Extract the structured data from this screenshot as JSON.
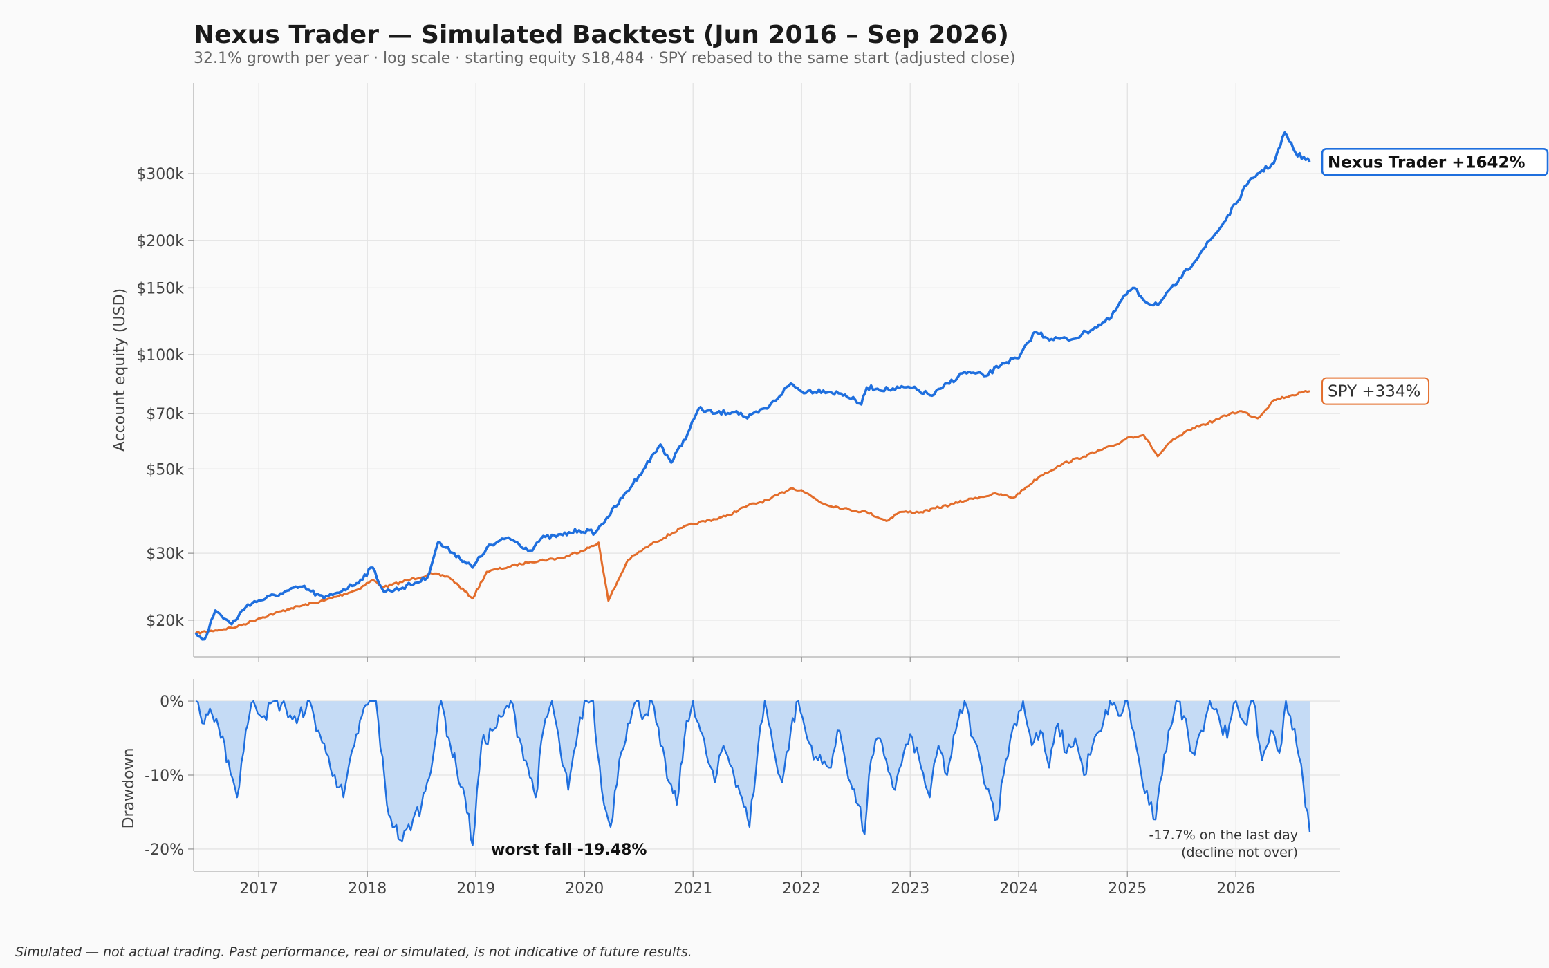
{
  "chart_data": [
    {
      "type": "line",
      "title": "Nexus Trader — Simulated Backtest (Jun 2016 – Sep 2026)",
      "subtitle": "32.1% growth per year · log scale · starting equity $18,484 · SPY rebased to the same start (adjusted close)",
      "ylabel": "Account equity (USD)",
      "yscale": "log",
      "ylim": [
        16000,
        520000
      ],
      "yticks": [
        20000,
        30000,
        50000,
        70000,
        100000,
        150000,
        200000,
        300000
      ],
      "ytick_labels": [
        "$20k",
        "$30k",
        "$50k",
        "$70k",
        "$100k",
        "$150k",
        "$200k",
        "$300k"
      ],
      "xlim": [
        2016.4,
        2026.96
      ],
      "x_ticks": [
        2017,
        2018,
        2019,
        2020,
        2021,
        2022,
        2023,
        2024,
        2025,
        2026
      ],
      "x_tick_labels": [
        "2017",
        "2018",
        "2019",
        "2020",
        "2021",
        "2022",
        "2023",
        "2024",
        "2025",
        "2026"
      ],
      "grid": true,
      "series": [
        {
          "name": "Nexus Trader",
          "color": "#1f6fde",
          "end_label": "Nexus Trader  +1642%",
          "x": [
            2016.42,
            2016.5,
            2016.6,
            2016.75,
            2016.9,
            2017.0,
            2017.2,
            2017.4,
            2017.6,
            2017.7,
            2017.9,
            2018.05,
            2018.15,
            2018.25,
            2018.4,
            2018.55,
            2018.65,
            2018.8,
            2018.97,
            2019.1,
            2019.3,
            2019.5,
            2019.6,
            2019.8,
            2019.95,
            2020.1,
            2020.2,
            2020.35,
            2020.5,
            2020.7,
            2020.8,
            2020.95,
            2021.05,
            2021.2,
            2021.4,
            2021.5,
            2021.7,
            2021.9,
            2022.0,
            2022.2,
            2022.4,
            2022.55,
            2022.6,
            2022.8,
            2023.0,
            2023.2,
            2023.3,
            2023.5,
            2023.7,
            2023.85,
            2024.0,
            2024.15,
            2024.3,
            2024.5,
            2024.7,
            2024.85,
            2024.95,
            2025.05,
            2025.2,
            2025.3,
            2025.5,
            2025.7,
            2025.85,
            2026.0,
            2026.1,
            2026.2,
            2026.35,
            2026.45,
            2026.55,
            2026.68
          ],
          "values": [
            18484,
            17800,
            21200,
            19500,
            22000,
            22500,
            23500,
            24500,
            22800,
            23500,
            25000,
            27500,
            23800,
            24000,
            24800,
            25800,
            32000,
            30000,
            27500,
            31000,
            33000,
            30500,
            32800,
            33500,
            34500,
            34000,
            37000,
            42000,
            48000,
            58000,
            52000,
            62000,
            72000,
            70000,
            71000,
            68000,
            73000,
            84000,
            80000,
            80500,
            78500,
            74000,
            82000,
            81000,
            82000,
            78000,
            82000,
            90000,
            88000,
            95000,
            98000,
            115000,
            110000,
            110000,
            118000,
            125000,
            140000,
            150000,
            136000,
            137000,
            160000,
            190000,
            215000,
            250000,
            280000,
            300000,
            320000,
            385000,
            340000,
            322000
          ]
        },
        {
          "name": "SPY",
          "color": "#e36d2b",
          "end_label": "SPY  +334%",
          "x": [
            2016.42,
            2016.6,
            2016.8,
            2017.0,
            2017.3,
            2017.6,
            2017.9,
            2018.05,
            2018.15,
            2018.4,
            2018.6,
            2018.75,
            2018.97,
            2019.1,
            2019.3,
            2019.5,
            2019.8,
            2020.1,
            2020.13,
            2020.22,
            2020.4,
            2020.6,
            2020.9,
            2021.0,
            2021.3,
            2021.5,
            2021.7,
            2021.9,
            2022.0,
            2022.2,
            2022.45,
            2022.6,
            2022.78,
            2022.9,
            2023.1,
            2023.4,
            2023.6,
            2023.8,
            2023.95,
            2024.2,
            2024.4,
            2024.6,
            2024.9,
            2025.0,
            2025.15,
            2025.28,
            2025.4,
            2025.6,
            2025.8,
            2025.95,
            2026.05,
            2026.2,
            2026.35,
            2026.5,
            2026.68
          ],
          "values": [
            18484,
            18800,
            19200,
            20200,
            21500,
            22500,
            24000,
            25500,
            24400,
            25600,
            26500,
            26000,
            22800,
            26800,
            27600,
            28500,
            29200,
            31500,
            32000,
            22500,
            28800,
            31500,
            35000,
            35800,
            37500,
            40000,
            41500,
            44500,
            44000,
            40500,
            39000,
            38500,
            36500,
            38500,
            38500,
            40500,
            42000,
            43000,
            42000,
            48000,
            51500,
            54000,
            58000,
            60500,
            61500,
            54000,
            59000,
            64000,
            67000,
            70000,
            71000,
            68000,
            76000,
            78000,
            80200
          ]
        }
      ]
    },
    {
      "type": "area",
      "ylabel": "Drawdown",
      "ylim": [
        -23,
        3
      ],
      "yticks": [
        0,
        -10,
        -20
      ],
      "ytick_labels": [
        "0%",
        "-10%",
        "-20%"
      ],
      "xlim": [
        2016.4,
        2026.96
      ],
      "x_ticks": [
        2017,
        2018,
        2019,
        2020,
        2021,
        2022,
        2023,
        2024,
        2025,
        2026
      ],
      "x_tick_labels": [
        "2017",
        "2018",
        "2019",
        "2020",
        "2021",
        "2022",
        "2023",
        "2024",
        "2025",
        "2026"
      ],
      "series": [
        {
          "name": "Drawdown",
          "color": "#1f6fde",
          "fill_color": "#c5dbf5",
          "x": [
            2016.42,
            2016.48,
            2016.55,
            2016.65,
            2016.72,
            2016.8,
            2016.88,
            2016.95,
            2017.05,
            2017.15,
            2017.25,
            2017.35,
            2017.45,
            2017.55,
            2017.62,
            2017.7,
            2017.78,
            2017.88,
            2017.95,
            2018.02,
            2018.08,
            2018.18,
            2018.25,
            2018.32,
            2018.42,
            2018.5,
            2018.55,
            2018.62,
            2018.68,
            2018.75,
            2018.82,
            2018.9,
            2018.97,
            2019.05,
            2019.15,
            2019.25,
            2019.32,
            2019.4,
            2019.48,
            2019.55,
            2019.62,
            2019.7,
            2019.78,
            2019.85,
            2019.92,
            2020.0,
            2020.08,
            2020.12,
            2020.18,
            2020.24,
            2020.32,
            2020.4,
            2020.48,
            2020.55,
            2020.62,
            2020.7,
            2020.78,
            2020.85,
            2020.92,
            2021.0,
            2021.05,
            2021.12,
            2021.2,
            2021.28,
            2021.36,
            2021.45,
            2021.52,
            2021.6,
            2021.66,
            2021.75,
            2021.82,
            2021.9,
            2021.97,
            2022.05,
            2022.15,
            2022.25,
            2022.35,
            2022.45,
            2022.52,
            2022.58,
            2022.62,
            2022.7,
            2022.78,
            2022.86,
            2022.94,
            2023.02,
            2023.1,
            2023.18,
            2023.26,
            2023.34,
            2023.42,
            2023.5,
            2023.58,
            2023.66,
            2023.74,
            2023.8,
            2023.88,
            2023.96,
            2024.04,
            2024.12,
            2024.2,
            2024.28,
            2024.36,
            2024.44,
            2024.52,
            2024.6,
            2024.68,
            2024.76,
            2024.84,
            2024.92,
            2025.0,
            2025.08,
            2025.14,
            2025.2,
            2025.26,
            2025.32,
            2025.38,
            2025.45,
            2025.52,
            2025.6,
            2025.68,
            2025.76,
            2025.84,
            2025.92,
            2026.0,
            2026.08,
            2026.16,
            2026.24,
            2026.32,
            2026.4,
            2026.46,
            2026.5,
            2026.56,
            2026.62,
            2026.68
          ],
          "values": [
            0,
            -3,
            -1,
            -5,
            -8,
            -13,
            -4,
            0,
            -2,
            0,
            -1,
            -3,
            0,
            -4,
            -7,
            -10,
            -13,
            -6,
            -2,
            0,
            0,
            -14,
            -17,
            -19,
            -16,
            -14,
            -11,
            -6,
            0,
            -5,
            -9,
            -13,
            -19.48,
            -6,
            -4,
            -2,
            0,
            -5,
            -9,
            -13,
            -4,
            0,
            -7,
            -12,
            -6,
            0,
            0,
            -7,
            -14,
            -17,
            -8,
            -3,
            0,
            -2,
            0,
            -6,
            -11,
            -14,
            -5,
            0,
            -3,
            -7,
            -11,
            -6,
            -9,
            -13,
            -17,
            -6,
            0,
            -7,
            -11,
            -4,
            0,
            -5,
            -8,
            -9,
            -4,
            -11,
            -14,
            -18,
            -10,
            -5,
            -8,
            -12,
            -7,
            -5,
            -9,
            -13,
            -6,
            -10,
            -4,
            0,
            -5,
            -9,
            -13,
            -16,
            -8,
            -3,
            0,
            -6,
            -4,
            -9,
            -3,
            -7,
            -5,
            -10,
            -6,
            -4,
            0,
            -2,
            0,
            -6,
            -11,
            -14,
            -16,
            -10,
            -4,
            0,
            -2,
            -7,
            -4,
            0,
            -2,
            -5,
            0,
            -3,
            0,
            -8,
            -4,
            -7,
            0,
            -2,
            -6,
            -11,
            -17.7
          ]
        }
      ],
      "annotations": {
        "worst": "worst fall -19.48%",
        "last_line1": "-17.7% on the last day",
        "last_line2": "(decline not over)"
      }
    }
  ],
  "footer": "Simulated — not actual trading. Past performance, real or simulated, is not indicative of future results."
}
